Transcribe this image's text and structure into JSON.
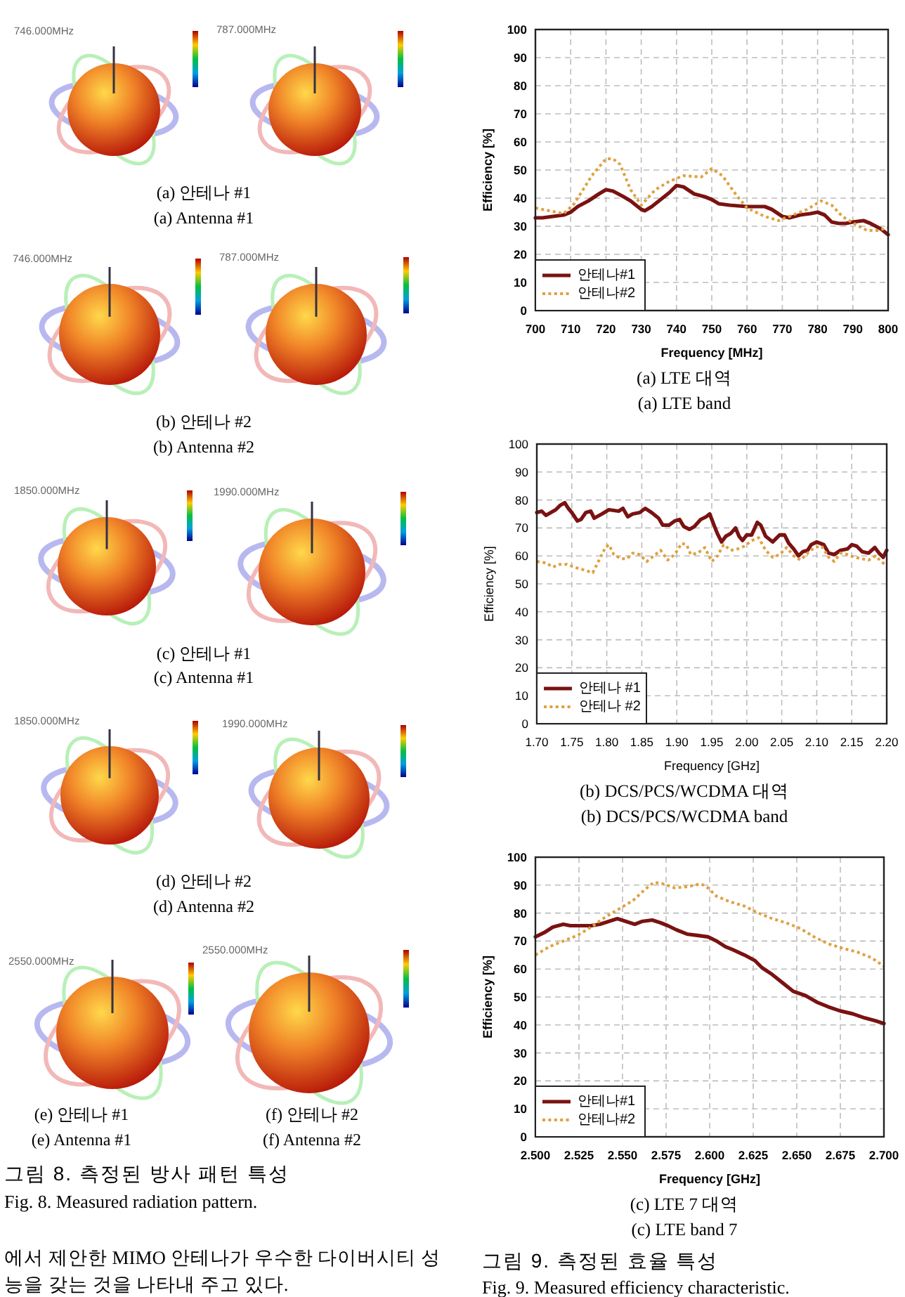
{
  "chart_data": [
    {
      "type": "other",
      "title": "그림 8. 측정된 방사 패턴 특성",
      "subtitle": "Fig. 8. Measured radiation pattern.",
      "annotations": [
        "746.000MHz",
        "787.000MHz",
        "(a) 안테나 #1",
        "(a) Antenna #1",
        "746.000MHz",
        "787.000MHz",
        "(b) 안테나 #2",
        "(b) Antenna #2",
        "1850.000MHz",
        "1990.000MHz",
        "(c) 안테나 #1",
        "(c) Antenna #1",
        "1850.000MHz",
        "1990.000MHz",
        "(d) 안테나 #2",
        "(d) Antenna #2",
        "2550.000MHz",
        "2550.000MHz",
        "(e) 안테나 #1",
        "(f) 안테나 #2",
        "(e) Antenna #1",
        "(f) Antenna #2",
        "에서 제안한 MIMO 안테나가 우수한 다이버시티 성",
        "능을 갖는 것을 나타내 주고 있다."
      ]
    },
    {
      "type": "line",
      "title": "(a) LTE 대역",
      "subtitle": "(a) LTE band",
      "xlabel": "Frequency [MHz]",
      "ylabel": "Efficiency [%]",
      "xlim": [
        700,
        800
      ],
      "xticks": [
        700,
        710,
        720,
        730,
        740,
        750,
        760,
        770,
        780,
        790,
        800
      ],
      "ylim": [
        0,
        100
      ],
      "yticks": [
        0,
        10,
        20,
        30,
        40,
        50,
        60,
        70,
        80,
        90,
        100
      ],
      "grid": true,
      "legend": "bottom left",
      "series": [
        {
          "name": "안테나#1",
          "color": "#7a1212",
          "line_style": "solid",
          "x": [
            700,
            702,
            705,
            708,
            710,
            712,
            715,
            718,
            720,
            722,
            725,
            727,
            730,
            731,
            733,
            735,
            738,
            740,
            742,
            745,
            748,
            750,
            752,
            755,
            760,
            765,
            767,
            770,
            772,
            775,
            778,
            780,
            782,
            784,
            786,
            788,
            790,
            793,
            795,
            798,
            800
          ],
          "values": [
            33,
            33,
            33.5,
            34,
            35,
            37,
            39,
            41.5,
            43,
            42.5,
            40.5,
            39,
            36,
            35.5,
            37,
            39,
            42,
            44.5,
            44,
            41.5,
            40.5,
            39.5,
            38,
            37.5,
            37,
            37,
            36,
            33.5,
            33,
            34,
            34.5,
            35,
            34,
            31.5,
            31,
            31,
            31.5,
            32,
            31,
            29,
            27
          ]
        },
        {
          "name": "안테나#2",
          "color": "#e0a040",
          "line_style": "dotted",
          "x": [
            700,
            704,
            708,
            711,
            713,
            716,
            720,
            722,
            724,
            727,
            730,
            734,
            738,
            742,
            747,
            750,
            753,
            757,
            760,
            765,
            769,
            773,
            777,
            781,
            784,
            787,
            791,
            794,
            797,
            800
          ],
          "values": [
            36.5,
            35.5,
            34.5,
            38,
            42,
            48,
            54,
            54,
            52,
            43,
            37.5,
            43,
            46,
            48,
            47.5,
            50.5,
            48,
            41,
            36.5,
            33.5,
            32,
            34,
            36,
            39,
            37.5,
            33.5,
            30.5,
            28.5,
            28.5,
            29.5
          ]
        }
      ]
    },
    {
      "type": "line",
      "title": "(b) DCS/PCS/WCDMA 대역",
      "subtitle": "(b) DCS/PCS/WCDMA band",
      "xlabel": "Frequency [GHz]",
      "ylabel": "Efficiency [%]",
      "xlim": [
        1.7,
        2.2
      ],
      "xticks": [
        {
          "value": 1.7,
          "label": "1.70"
        },
        {
          "value": 1.75,
          "label": "1.75"
        },
        {
          "value": 1.8,
          "label": "1.80"
        },
        {
          "value": 1.85,
          "label": "1.85"
        },
        {
          "value": 1.9,
          "label": "1.90"
        },
        {
          "value": 1.95,
          "label": "1.95"
        },
        {
          "value": 2.0,
          "label": "2.00"
        },
        {
          "value": 2.05,
          "label": "2.05"
        },
        {
          "value": 2.1,
          "label": "2.10"
        },
        {
          "value": 2.15,
          "label": "2.15"
        },
        {
          "value": 2.2,
          "label": "2.20"
        }
      ],
      "ylim": [
        0,
        100
      ],
      "yticks": [
        0,
        10,
        20,
        30,
        40,
        50,
        60,
        70,
        80,
        90,
        100
      ],
      "grid": true,
      "legend": "bottom left",
      "series": [
        {
          "name": "안테나 #1",
          "color": "#7a1212",
          "line_style": "solid",
          "x": [
            1.7,
            1.707,
            1.713,
            1.72,
            1.727,
            1.733,
            1.74,
            1.745,
            1.75,
            1.758,
            1.763,
            1.77,
            1.777,
            1.782,
            1.793,
            1.803,
            1.817,
            1.823,
            1.83,
            1.837,
            1.847,
            1.855,
            1.864,
            1.874,
            1.88,
            1.889,
            1.897,
            1.904,
            1.91,
            1.918,
            1.925,
            1.934,
            1.942,
            1.947,
            1.954,
            1.958,
            1.964,
            1.97,
            1.977,
            1.984,
            1.989,
            1.994,
            2.0,
            2.007,
            2.015,
            2.02,
            2.027,
            2.037,
            2.047,
            2.054,
            2.06,
            2.067,
            2.074,
            2.08,
            2.087,
            2.092,
            2.1,
            2.11,
            2.117,
            2.125,
            2.134,
            2.144,
            2.15,
            2.157,
            2.165,
            2.174,
            2.183,
            2.189,
            2.195,
            2.2
          ],
          "values": [
            75.5,
            76,
            74.5,
            75.5,
            76.5,
            78,
            79,
            77,
            75.5,
            72.5,
            73,
            75.5,
            76,
            73.5,
            75,
            76.5,
            76,
            77,
            74,
            75,
            75.5,
            77,
            75.5,
            73.5,
            71,
            71,
            72.5,
            73,
            70.5,
            69.5,
            70.5,
            73,
            74,
            75,
            70.5,
            68,
            65,
            67,
            68,
            70,
            67,
            65.5,
            67.5,
            67.5,
            72,
            71,
            67,
            65,
            67.5,
            67.5,
            64.5,
            62.5,
            60,
            61.5,
            62,
            64,
            65,
            64,
            61,
            60.5,
            62,
            62.5,
            64,
            63.5,
            61.5,
            61,
            63,
            61,
            59.5,
            62
          ]
        },
        {
          "name": "안테나 #2",
          "color": "#e0a040",
          "line_style": "dotted",
          "x": [
            1.7,
            1.713,
            1.723,
            1.733,
            1.743,
            1.753,
            1.767,
            1.78,
            1.789,
            1.798,
            1.803,
            1.81,
            1.82,
            1.829,
            1.837,
            1.847,
            1.857,
            1.867,
            1.877,
            1.887,
            1.897,
            1.907,
            1.914,
            1.92,
            1.93,
            1.94,
            1.95,
            1.958,
            1.967,
            1.977,
            1.987,
            1.997,
            2.007,
            2.017,
            2.027,
            2.037,
            2.047,
            2.057,
            2.067,
            2.077,
            2.087,
            2.097,
            2.107,
            2.117,
            2.125,
            2.134,
            2.144,
            2.154,
            2.164,
            2.174,
            2.184,
            2.192,
            2.2
          ],
          "values": [
            58,
            57.5,
            56,
            57,
            57,
            56,
            55,
            54,
            58.5,
            63,
            64,
            60.5,
            59,
            59,
            61,
            60.5,
            58,
            60,
            62,
            58.5,
            60.5,
            64.5,
            64,
            60.5,
            61,
            63,
            58,
            60,
            64,
            62,
            62.5,
            63.5,
            65.5,
            66.5,
            62,
            59.5,
            60.5,
            63,
            60,
            58.5,
            61,
            63,
            63.5,
            59.5,
            58,
            61,
            60.5,
            59.5,
            59,
            58.5,
            60,
            58,
            56.5
          ]
        }
      ]
    },
    {
      "type": "line",
      "title": "(c) LTE 7 대역",
      "subtitle": "(c) LTE band 7",
      "xlabel": "Frequency [GHz]",
      "ylabel": "Efficiency [%]",
      "xlim": [
        2.5,
        2.7
      ],
      "xticks": [
        {
          "value": 2.5,
          "label": "2.500"
        },
        {
          "value": 2.525,
          "label": "2.525"
        },
        {
          "value": 2.55,
          "label": "2.550"
        },
        {
          "value": 2.575,
          "label": "2.575"
        },
        {
          "value": 2.6,
          "label": "2.600"
        },
        {
          "value": 2.625,
          "label": "2.625"
        },
        {
          "value": 2.65,
          "label": "2.650"
        },
        {
          "value": 2.675,
          "label": "2.675"
        },
        {
          "value": 2.7,
          "label": "2.700"
        }
      ],
      "ylim": [
        0,
        100
      ],
      "yticks": [
        0,
        10,
        20,
        30,
        40,
        50,
        60,
        70,
        80,
        90,
        100
      ],
      "grid": true,
      "legend": "bottom left",
      "annotations": [
        "그림 9. 측정된 효율 특성",
        "Fig. 9. Measured efficiency characteristic."
      ],
      "series": [
        {
          "name": "안테나#1",
          "color": "#7a1212",
          "line_style": "solid",
          "x": [
            2.5,
            2.505,
            2.51,
            2.516,
            2.52,
            2.524,
            2.532,
            2.537,
            2.542,
            2.547,
            2.552,
            2.557,
            2.561,
            2.567,
            2.572,
            2.576,
            2.581,
            2.587,
            2.593,
            2.599,
            2.604,
            2.609,
            2.613,
            2.62,
            2.626,
            2.63,
            2.636,
            2.642,
            2.648,
            2.655,
            2.662,
            2.668,
            2.675,
            2.682,
            2.689,
            2.695,
            2.7
          ],
          "values": [
            71.5,
            73,
            75,
            76,
            75.5,
            75.5,
            75.5,
            76,
            77,
            78,
            77,
            76,
            77,
            77.5,
            76.5,
            75.5,
            74,
            72.5,
            72,
            71.5,
            70,
            68,
            67,
            65,
            63,
            60.5,
            58,
            55,
            52,
            50.5,
            48,
            46.5,
            45,
            44,
            42.5,
            41.5,
            40.5
          ]
        },
        {
          "name": "안테나#2",
          "color": "#e0a040",
          "line_style": "dotted",
          "x": [
            2.5,
            2.508,
            2.516,
            2.524,
            2.532,
            2.54,
            2.548,
            2.556,
            2.563,
            2.568,
            2.573,
            2.58,
            2.588,
            2.595,
            2.599,
            2.604,
            2.612,
            2.62,
            2.628,
            2.636,
            2.644,
            2.652,
            2.66,
            2.668,
            2.676,
            2.685,
            2.693,
            2.7
          ],
          "values": [
            65,
            68,
            70,
            72,
            75,
            78.5,
            81.5,
            84.5,
            88.5,
            91,
            90.5,
            89,
            89.5,
            90.5,
            89,
            86,
            84,
            82.5,
            80,
            78,
            76.5,
            74.5,
            71.5,
            69,
            67.5,
            66,
            64,
            61
          ]
        }
      ]
    }
  ]
}
